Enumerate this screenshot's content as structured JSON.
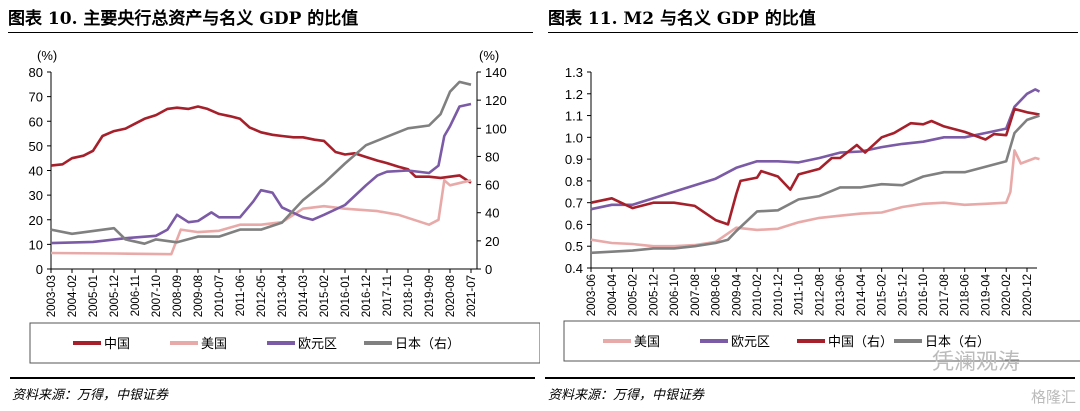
{
  "source_left": "资料来源：万得，中银证券",
  "source_right": "资料来源：万得，中银证券",
  "watermark": "凭澜观涛",
  "watermark2": "格隆汇",
  "chart_data": [
    {
      "type": "line",
      "title": "图表 10. 主要央行总资产与名义 GDP 的比值",
      "ylabel": "(%)",
      "y2label": "(%)",
      "ylim": [
        0,
        80
      ],
      "y2lim": [
        0,
        140
      ],
      "yticks": [
        "0",
        "10",
        "20",
        "30",
        "40",
        "50",
        "60",
        "70",
        "80"
      ],
      "y2ticks": [
        "0",
        "20",
        "40",
        "60",
        "80",
        "100",
        "120",
        "140"
      ],
      "xticks": [
        "2003-03",
        "2004-02",
        "2005-01",
        "2005-12",
        "2006-11",
        "2007-10",
        "2008-09",
        "2009-08",
        "2010-07",
        "2011-06",
        "2012-05",
        "2013-04",
        "2014-03",
        "2015-02",
        "2016-01",
        "2016-12",
        "2017-11",
        "2018-10",
        "2019-09",
        "2020-08",
        "2021-07"
      ],
      "legend": "bottom",
      "grid": false,
      "series": [
        {
          "name": "中国",
          "color": "#a5202a",
          "axis": "left",
          "points": [
            [
              "2003-03",
              42
            ],
            [
              "2003-09",
              42.5
            ],
            [
              "2004-02",
              45
            ],
            [
              "2004-08",
              46
            ],
            [
              "2005-01",
              48
            ],
            [
              "2005-06",
              54
            ],
            [
              "2005-12",
              56
            ],
            [
              "2006-06",
              57
            ],
            [
              "2006-11",
              59
            ],
            [
              "2007-04",
              61
            ],
            [
              "2007-10",
              62.5
            ],
            [
              "2008-04",
              65
            ],
            [
              "2008-09",
              65.5
            ],
            [
              "2009-03",
              65
            ],
            [
              "2009-08",
              66
            ],
            [
              "2010-01",
              65
            ],
            [
              "2010-07",
              63
            ],
            [
              "2011-01",
              62
            ],
            [
              "2011-06",
              61
            ],
            [
              "2011-11",
              57.5
            ],
            [
              "2012-05",
              55.5
            ],
            [
              "2012-11",
              54.5
            ],
            [
              "2013-04",
              54
            ],
            [
              "2013-10",
              53.5
            ],
            [
              "2014-03",
              53.5
            ],
            [
              "2014-09",
              52.5
            ],
            [
              "2015-02",
              52
            ],
            [
              "2015-08",
              47.5
            ],
            [
              "2016-01",
              46.5
            ],
            [
              "2016-06",
              47
            ],
            [
              "2016-12",
              45.5
            ],
            [
              "2017-06",
              44
            ],
            [
              "2017-11",
              43
            ],
            [
              "2018-05",
              41.5
            ],
            [
              "2018-10",
              40.5
            ],
            [
              "2019-02",
              37.5
            ],
            [
              "2019-09",
              37.5
            ],
            [
              "2020-03",
              37
            ],
            [
              "2020-08",
              37.5
            ],
            [
              "2021-01",
              38
            ],
            [
              "2021-07",
              35
            ]
          ]
        },
        {
          "name": "美国",
          "color": "#e8aaa8",
          "axis": "left",
          "points": [
            [
              "2003-03",
              6.5
            ],
            [
              "2005-12",
              6.3
            ],
            [
              "2008-06",
              6
            ],
            [
              "2008-11",
              16
            ],
            [
              "2009-08",
              15
            ],
            [
              "2010-07",
              15.5
            ],
            [
              "2011-06",
              18
            ],
            [
              "2012-05",
              18
            ],
            [
              "2013-04",
              19
            ],
            [
              "2014-03",
              24.5
            ],
            [
              "2015-02",
              25.5
            ],
            [
              "2016-01",
              24.5
            ],
            [
              "2017-06",
              23.5
            ],
            [
              "2018-05",
              22
            ],
            [
              "2019-09",
              18
            ],
            [
              "2020-02",
              20
            ],
            [
              "2020-05",
              36
            ],
            [
              "2020-08",
              34
            ],
            [
              "2021-07",
              36
            ]
          ]
        },
        {
          "name": "欧元区",
          "color": "#7b5aa6",
          "axis": "left",
          "points": [
            [
              "2003-03",
              10.5
            ],
            [
              "2005-01",
              11
            ],
            [
              "2006-06",
              12.5
            ],
            [
              "2007-10",
              13.5
            ],
            [
              "2008-04",
              16
            ],
            [
              "2008-09",
              22
            ],
            [
              "2009-03",
              19
            ],
            [
              "2009-08",
              19.5
            ],
            [
              "2010-03",
              23
            ],
            [
              "2010-07",
              21
            ],
            [
              "2011-06",
              21
            ],
            [
              "2012-01",
              27.5
            ],
            [
              "2012-05",
              32
            ],
            [
              "2012-11",
              31
            ],
            [
              "2013-04",
              25
            ],
            [
              "2014-03",
              21
            ],
            [
              "2014-08",
              20
            ],
            [
              "2015-02",
              22
            ],
            [
              "2016-01",
              26
            ],
            [
              "2016-12",
              34
            ],
            [
              "2017-06",
              38
            ],
            [
              "2017-11",
              39.5
            ],
            [
              "2018-10",
              40
            ],
            [
              "2019-09",
              39
            ],
            [
              "2020-02",
              42
            ],
            [
              "2020-05",
              54
            ],
            [
              "2020-08",
              58
            ],
            [
              "2021-01",
              66
            ],
            [
              "2021-07",
              67
            ]
          ]
        },
        {
          "name": "日本（右）",
          "color": "#808080",
          "axis": "right",
          "points": [
            [
              "2003-03",
              28
            ],
            [
              "2004-02",
              25
            ],
            [
              "2005-12",
              29
            ],
            [
              "2006-06",
              21
            ],
            [
              "2007-04",
              18
            ],
            [
              "2007-10",
              21
            ],
            [
              "2008-09",
              19
            ],
            [
              "2009-08",
              23
            ],
            [
              "2010-07",
              23
            ],
            [
              "2011-06",
              28
            ],
            [
              "2012-05",
              28
            ],
            [
              "2013-04",
              33
            ],
            [
              "2014-03",
              49
            ],
            [
              "2015-02",
              61
            ],
            [
              "2016-01",
              75
            ],
            [
              "2016-12",
              88
            ],
            [
              "2017-11",
              94
            ],
            [
              "2018-10",
              100
            ],
            [
              "2019-09",
              102
            ],
            [
              "2020-03",
              110
            ],
            [
              "2020-08",
              126
            ],
            [
              "2021-01",
              133
            ],
            [
              "2021-07",
              131
            ]
          ]
        }
      ]
    },
    {
      "type": "line",
      "title": "图表 11. M2 与名义 GDP 的比值",
      "ylim": [
        0.4,
        1.3
      ],
      "yticks": [
        "0.4",
        "0.5",
        "0.6",
        "0.7",
        "0.8",
        "0.9",
        "1.0",
        "1.1",
        "1.2",
        "1.3"
      ],
      "xticks": [
        "2003-06",
        "2004-04",
        "2005-02",
        "2005-12",
        "2006-10",
        "2007-08",
        "2008-06",
        "2009-04",
        "2010-02",
        "2010-12",
        "2011-10",
        "2012-08",
        "2013-06",
        "2014-04",
        "2015-02",
        "2015-12",
        "2016-10",
        "2017-08",
        "2018-06",
        "2019-04",
        "2020-02",
        "2020-12"
      ],
      "legend": "bottom",
      "grid": false,
      "series": [
        {
          "name": "美国",
          "color": "#e8aaa8",
          "points": [
            [
              "2003-06",
              0.53
            ],
            [
              "2004-04",
              0.515
            ],
            [
              "2005-02",
              0.51
            ],
            [
              "2005-12",
              0.5
            ],
            [
              "2006-10",
              0.5
            ],
            [
              "2007-08",
              0.505
            ],
            [
              "2008-06",
              0.52
            ],
            [
              "2009-04",
              0.585
            ],
            [
              "2010-02",
              0.575
            ],
            [
              "2010-12",
              0.58
            ],
            [
              "2011-10",
              0.61
            ],
            [
              "2012-08",
              0.63
            ],
            [
              "2013-06",
              0.64
            ],
            [
              "2014-04",
              0.65
            ],
            [
              "2015-02",
              0.655
            ],
            [
              "2015-12",
              0.68
            ],
            [
              "2016-10",
              0.695
            ],
            [
              "2017-08",
              0.7
            ],
            [
              "2018-06",
              0.69
            ],
            [
              "2019-04",
              0.695
            ],
            [
              "2020-02",
              0.7
            ],
            [
              "2020-04",
              0.75
            ],
            [
              "2020-06",
              0.94
            ],
            [
              "2020-09",
              0.88
            ],
            [
              "2021-04",
              0.905
            ],
            [
              "2021-06",
              0.9
            ]
          ]
        },
        {
          "name": "欧元区",
          "color": "#7b5aa6",
          "points": [
            [
              "2003-06",
              0.67
            ],
            [
              "2004-04",
              0.69
            ],
            [
              "2005-02",
              0.69
            ],
            [
              "2005-12",
              0.72
            ],
            [
              "2006-10",
              0.75
            ],
            [
              "2007-08",
              0.78
            ],
            [
              "2008-06",
              0.81
            ],
            [
              "2009-04",
              0.86
            ],
            [
              "2010-02",
              0.89
            ],
            [
              "2010-12",
              0.89
            ],
            [
              "2011-10",
              0.885
            ],
            [
              "2012-08",
              0.905
            ],
            [
              "2013-06",
              0.93
            ],
            [
              "2014-04",
              0.935
            ],
            [
              "2015-02",
              0.955
            ],
            [
              "2015-12",
              0.97
            ],
            [
              "2016-10",
              0.98
            ],
            [
              "2017-08",
              1.0
            ],
            [
              "2018-06",
              1.0
            ],
            [
              "2019-04",
              1.02
            ],
            [
              "2020-02",
              1.04
            ],
            [
              "2020-06",
              1.14
            ],
            [
              "2020-12",
              1.2
            ],
            [
              "2021-04",
              1.22
            ],
            [
              "2021-06",
              1.21
            ]
          ]
        },
        {
          "name": "中国（右）",
          "color": "#a5202a",
          "points": [
            [
              "2003-06",
              0.7
            ],
            [
              "2004-04",
              0.72
            ],
            [
              "2005-02",
              0.675
            ],
            [
              "2005-12",
              0.7
            ],
            [
              "2006-10",
              0.7
            ],
            [
              "2007-08",
              0.685
            ],
            [
              "2008-06",
              0.62
            ],
            [
              "2008-12",
              0.6
            ],
            [
              "2009-04",
              0.74
            ],
            [
              "2009-06",
              0.8
            ],
            [
              "2010-02",
              0.815
            ],
            [
              "2010-04",
              0.845
            ],
            [
              "2010-12",
              0.82
            ],
            [
              "2011-06",
              0.76
            ],
            [
              "2011-10",
              0.83
            ],
            [
              "2012-08",
              0.855
            ],
            [
              "2013-02",
              0.905
            ],
            [
              "2013-06",
              0.905
            ],
            [
              "2014-02",
              0.965
            ],
            [
              "2014-06",
              0.93
            ],
            [
              "2015-02",
              1.0
            ],
            [
              "2015-08",
              1.02
            ],
            [
              "2016-04",
              1.065
            ],
            [
              "2016-10",
              1.06
            ],
            [
              "2017-02",
              1.075
            ],
            [
              "2017-08",
              1.05
            ],
            [
              "2018-06",
              1.025
            ],
            [
              "2019-04",
              0.99
            ],
            [
              "2019-08",
              1.015
            ],
            [
              "2020-02",
              1.01
            ],
            [
              "2020-06",
              1.13
            ],
            [
              "2020-12",
              1.115
            ],
            [
              "2021-06",
              1.105
            ]
          ]
        },
        {
          "name": "日本（右）",
          "color": "#808080",
          "points": [
            [
              "2003-06",
              0.47
            ],
            [
              "2004-04",
              0.475
            ],
            [
              "2005-02",
              0.48
            ],
            [
              "2005-12",
              0.49
            ],
            [
              "2006-10",
              0.49
            ],
            [
              "2007-08",
              0.5
            ],
            [
              "2008-06",
              0.515
            ],
            [
              "2008-12",
              0.53
            ],
            [
              "2009-04",
              0.57
            ],
            [
              "2010-02",
              0.66
            ],
            [
              "2010-12",
              0.665
            ],
            [
              "2011-10",
              0.715
            ],
            [
              "2012-08",
              0.73
            ],
            [
              "2013-06",
              0.77
            ],
            [
              "2014-04",
              0.77
            ],
            [
              "2015-02",
              0.785
            ],
            [
              "2015-12",
              0.78
            ],
            [
              "2016-10",
              0.82
            ],
            [
              "2017-08",
              0.84
            ],
            [
              "2018-06",
              0.84
            ],
            [
              "2019-04",
              0.865
            ],
            [
              "2020-02",
              0.89
            ],
            [
              "2020-06",
              1.02
            ],
            [
              "2020-12",
              1.08
            ],
            [
              "2021-06",
              1.1
            ]
          ]
        }
      ]
    }
  ]
}
